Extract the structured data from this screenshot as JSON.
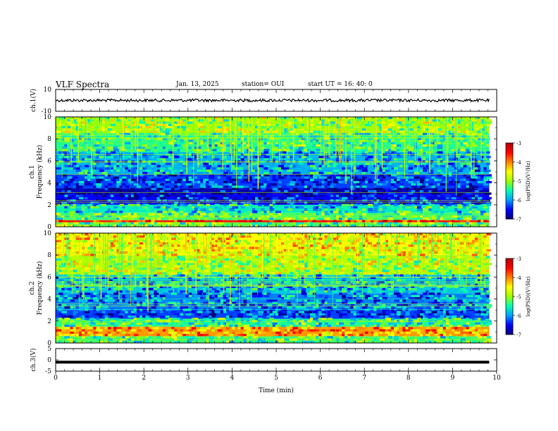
{
  "header": {
    "title": "VLF Spectra",
    "date": "Jan. 13, 2025",
    "station": "station= OUI",
    "start": "start  UT =   16: 40: 0"
  },
  "chart_data": [
    {
      "type": "line",
      "name": "ch1-waveform",
      "ylabel": "ch.1(V)",
      "ylim": [
        -10,
        10
      ],
      "yticks": [
        "10",
        "-10"
      ],
      "xlim": [
        0,
        10
      ],
      "x": [
        0,
        9.83
      ],
      "series": [
        {
          "values": [
            0,
            0
          ]
        }
      ],
      "colors": {
        "line": "#000000"
      }
    },
    {
      "type": "heatmap",
      "name": "ch1-spectrogram",
      "ylabel": "ch.1\nFrequency (kHz)",
      "ylim": [
        0,
        10
      ],
      "yticks": [
        "0",
        "2",
        "4",
        "6",
        "8",
        "10"
      ],
      "xlim": [
        0,
        10
      ],
      "x_data_end": 9.83,
      "bands": [
        {
          "f": [
            0,
            0.4
          ],
          "level": -5.2
        },
        {
          "f": [
            0.4,
            0.6
          ],
          "level": -3.6
        },
        {
          "f": [
            0.6,
            1.3
          ],
          "level": -5.3
        },
        {
          "f": [
            1.3,
            2.0
          ],
          "level": -5.6
        },
        {
          "f": [
            2.0,
            3.0
          ],
          "level": -6.5
        },
        {
          "f": [
            3.0,
            3.5
          ],
          "level": -6.8
        },
        {
          "f": [
            3.5,
            4.8
          ],
          "level": -6.3
        },
        {
          "f": [
            4.8,
            6.8
          ],
          "level": -5.9
        },
        {
          "f": [
            6.8,
            8.5
          ],
          "level": -5.4
        },
        {
          "f": [
            8.5,
            10.0
          ],
          "level": -5.0
        }
      ]
    },
    {
      "type": "heatmap",
      "name": "ch2-spectrogram",
      "ylabel": "ch.2\nFrequency (kHz)",
      "ylim": [
        0,
        10
      ],
      "yticks": [
        "0",
        "2",
        "4",
        "6",
        "8",
        "10"
      ],
      "xlim": [
        0,
        10
      ],
      "x_data_end": 9.83,
      "bands": [
        {
          "f": [
            0,
            0.6
          ],
          "level": -5.3
        },
        {
          "f": [
            0.6,
            1.5
          ],
          "level": -4.1
        },
        {
          "f": [
            1.5,
            2.2
          ],
          "level": -5.4
        },
        {
          "f": [
            2.2,
            3.0
          ],
          "level": -6.3
        },
        {
          "f": [
            3.0,
            4.5
          ],
          "level": -6.1
        },
        {
          "f": [
            4.5,
            6.2
          ],
          "level": -5.8
        },
        {
          "f": [
            6.2,
            8.0
          ],
          "level": -4.9
        },
        {
          "f": [
            8.0,
            10.0
          ],
          "level": -4.5
        }
      ]
    },
    {
      "type": "line",
      "name": "ch3-waveform",
      "ylabel": "ch.3(V)",
      "ylim": [
        -5,
        5
      ],
      "yticks": [
        "5",
        "0",
        "-5"
      ],
      "xlim": [
        0,
        10
      ],
      "xlabel": "Time (min)",
      "xticks": [
        "0",
        "1",
        "2",
        "3",
        "4",
        "5",
        "6",
        "7",
        "8",
        "9",
        "10"
      ],
      "x": [
        0,
        9.83
      ],
      "series": [
        {
          "values": [
            -1,
            -1
          ]
        }
      ],
      "colors": {
        "line": "#000000"
      }
    }
  ],
  "colorbar": {
    "label": "log(PSD)(V²/Hz)",
    "range": [
      -7,
      -3
    ],
    "ticks": [
      "-3",
      "-4",
      "-5",
      "-6",
      "-7"
    ],
    "colors": [
      "#00007a",
      "#0000ff",
      "#00a0ff",
      "#00ffb0",
      "#a0ff00",
      "#ffff00",
      "#ff8000",
      "#ff0000",
      "#b00000",
      "#ffffff"
    ]
  }
}
